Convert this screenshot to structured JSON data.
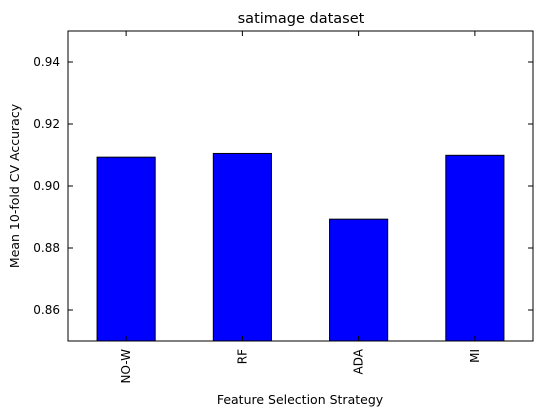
{
  "chart_data": {
    "type": "bar",
    "title": "satimage dataset",
    "xlabel": "Feature Selection Strategy",
    "ylabel": "Mean 10-fold CV Accuracy",
    "categories": [
      "NO-W",
      "RF",
      "ADA",
      "MI"
    ],
    "values": [
      0.9093,
      0.9105,
      0.8893,
      0.9099
    ],
    "ylim": [
      0.85,
      0.95
    ],
    "yticks": [
      "0.86",
      "0.88",
      "0.90",
      "0.92",
      "0.94"
    ],
    "bar_color": "#0000ff",
    "grid": false,
    "legend": "none"
  }
}
